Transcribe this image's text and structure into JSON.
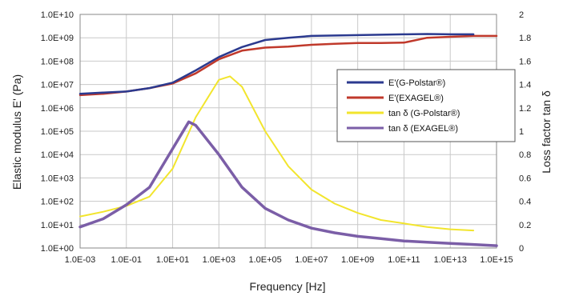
{
  "chart_data": {
    "type": "line",
    "xlabel": "Frequency [Hz]",
    "ylabel_left": "Elastic modulus E' (Pa)",
    "ylabel_right": "Loss factor tan δ",
    "x_scale": "log",
    "y_left_scale": "log",
    "xlim": [
      0.001,
      1000000000000000.0
    ],
    "ylim_left": [
      1,
      10000000000.0
    ],
    "ylim_right": [
      0,
      2
    ],
    "grid": true,
    "legend_position": "center-right",
    "x_tick_labels": [
      "1.0E-03",
      "1.0E-01",
      "1.0E+01",
      "1.0E+03",
      "1.0E+05",
      "1.0E+07",
      "1.0E+09",
      "1.0E+11",
      "1.0E+13",
      "1.0E+15"
    ],
    "y_left_tick_labels": [
      "1.0E+00",
      "1.0E+01",
      "1.0E+02",
      "1.0E+03",
      "1.0E+04",
      "1.0E+05",
      "1.0E+06",
      "1.0E+07",
      "1.0E+08",
      "1.0E+09",
      "1.0E+10"
    ],
    "y_right_tick_labels": [
      "0",
      "0.2",
      "0.4",
      "0.6",
      "0.8",
      "1",
      "1.2",
      "1.4",
      "1.6",
      "1.8",
      "2"
    ],
    "series": [
      {
        "name": "E'(G-Polstar®)",
        "axis": "left",
        "color": "#2b3a8f",
        "x": [
          0.001,
          0.01,
          0.1,
          1,
          10,
          100,
          1000,
          10000,
          100000,
          1000000,
          10000000,
          1000000000.0,
          100000000000.0,
          1000000000000.0,
          10000000000000.0,
          100000000000000.0
        ],
        "y": [
          4000000,
          4500000,
          5000000,
          7000000,
          12000000,
          40000000,
          150000000,
          400000000,
          800000000,
          1000000000,
          1200000000,
          1300000000,
          1400000000,
          1450000000,
          1400000000,
          1400000000
        ]
      },
      {
        "name": "E'(EXAGEL®)",
        "axis": "left",
        "color": "#c0392b",
        "x": [
          0.001,
          0.01,
          0.1,
          1,
          10,
          100,
          1000,
          10000,
          100000,
          1000000,
          10000000,
          100000000,
          1000000000.0,
          10000000000.0,
          100000000000.0,
          1000000000000.0,
          10000000000000.0,
          100000000000000.0,
          1000000000000000.0
        ],
        "y": [
          3500000,
          4000000,
          5000000,
          7000000,
          11000000,
          30000000,
          120000000,
          280000000,
          380000000,
          420000000,
          500000000,
          550000000,
          600000000,
          600000000,
          620000000,
          1000000000,
          1100000000,
          1200000000,
          1200000000
        ]
      },
      {
        "name": "tan δ (G-Polstar®)",
        "axis": "right",
        "color": "#f2e52d",
        "x": [
          0.001,
          0.01,
          0.1,
          1,
          10,
          100,
          1000,
          3000,
          10000,
          100000,
          1000000,
          10000000,
          100000000,
          1000000000.0,
          10000000000.0,
          100000000000.0,
          1000000000000.0,
          10000000000000.0,
          100000000000000.0
        ],
        "y": [
          0.27,
          0.31,
          0.36,
          0.44,
          0.68,
          1.12,
          1.44,
          1.47,
          1.38,
          1.0,
          0.7,
          0.5,
          0.38,
          0.3,
          0.24,
          0.21,
          0.18,
          0.16,
          0.15
        ]
      },
      {
        "name": "tan δ (EXAGEL®)",
        "axis": "right",
        "color": "#7b5ea7",
        "x": [
          0.001,
          0.01,
          0.1,
          1,
          10,
          50,
          100,
          1000,
          10000,
          100000,
          1000000,
          10000000,
          100000000,
          1000000000.0,
          10000000000.0,
          100000000000.0,
          1000000000000.0,
          10000000000000.0,
          100000000000000.0,
          1000000000000000.0
        ],
        "y": [
          0.18,
          0.25,
          0.37,
          0.52,
          0.85,
          1.08,
          1.05,
          0.8,
          0.52,
          0.34,
          0.24,
          0.17,
          0.13,
          0.1,
          0.08,
          0.06,
          0.05,
          0.04,
          0.03,
          0.02
        ]
      }
    ]
  }
}
